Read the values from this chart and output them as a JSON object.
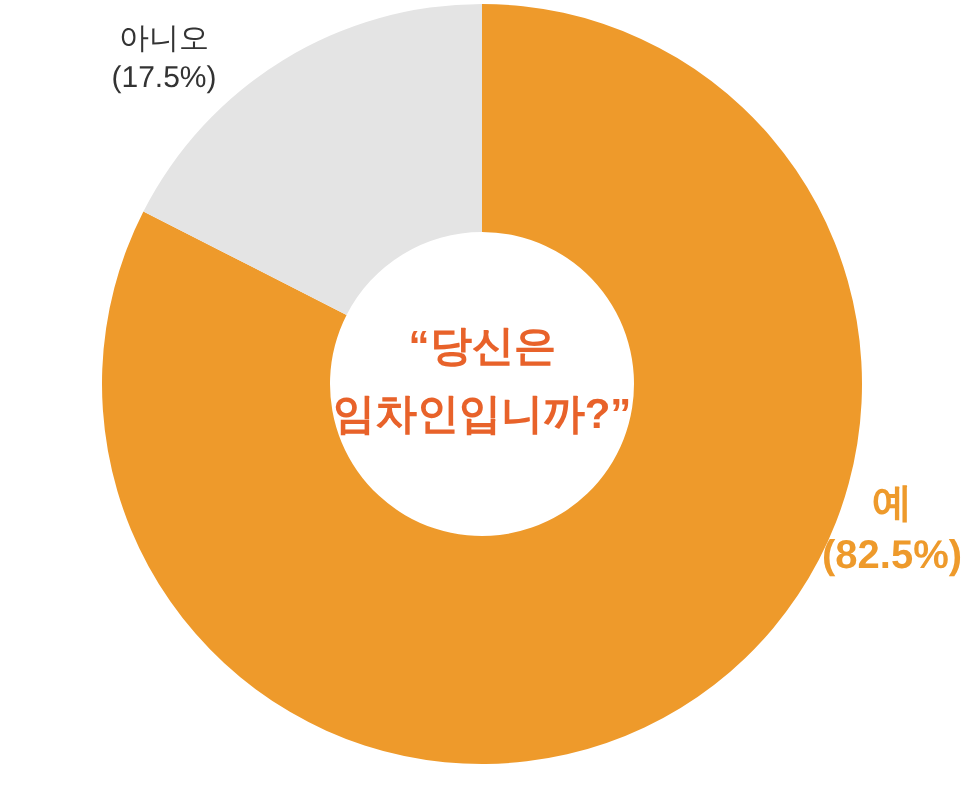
{
  "chart_data": {
    "type": "donut",
    "title": "“당신은 임차인입니까?”",
    "categories": [
      "예",
      "아니오"
    ],
    "values": [
      82.5,
      17.5
    ],
    "colors": [
      "#ee9a2b",
      "#e4e4e4"
    ],
    "value_labels": [
      "(82.5%)",
      "(17.5%)"
    ]
  }
}
